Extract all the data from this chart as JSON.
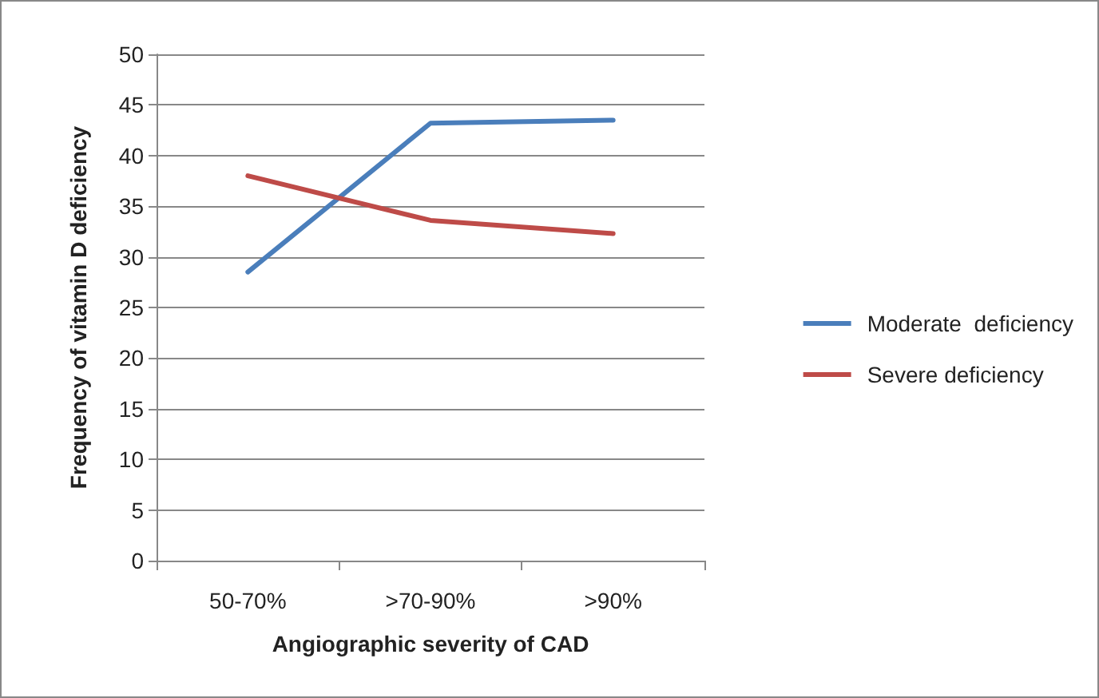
{
  "chart_data": {
    "type": "line",
    "xlabel": "Angiographic severity of CAD",
    "ylabel": "Frequency of vitamin D deficiency",
    "categories": [
      "50-70%",
      ">70-90%",
      ">90%"
    ],
    "series": [
      {
        "name": "Moderate  deficiency",
        "color": "#4a7ebb",
        "values": [
          28.5,
          43.2,
          43.5
        ]
      },
      {
        "name": "Severe deficiency",
        "color": "#be4b48",
        "values": [
          38.0,
          33.6,
          32.3
        ]
      }
    ],
    "ylim": [
      0,
      50
    ],
    "yticks": [
      0,
      5,
      10,
      15,
      20,
      25,
      30,
      35,
      40,
      45,
      50
    ],
    "grid": "y",
    "legend": "right",
    "marker": "none",
    "line_style": "solid"
  }
}
